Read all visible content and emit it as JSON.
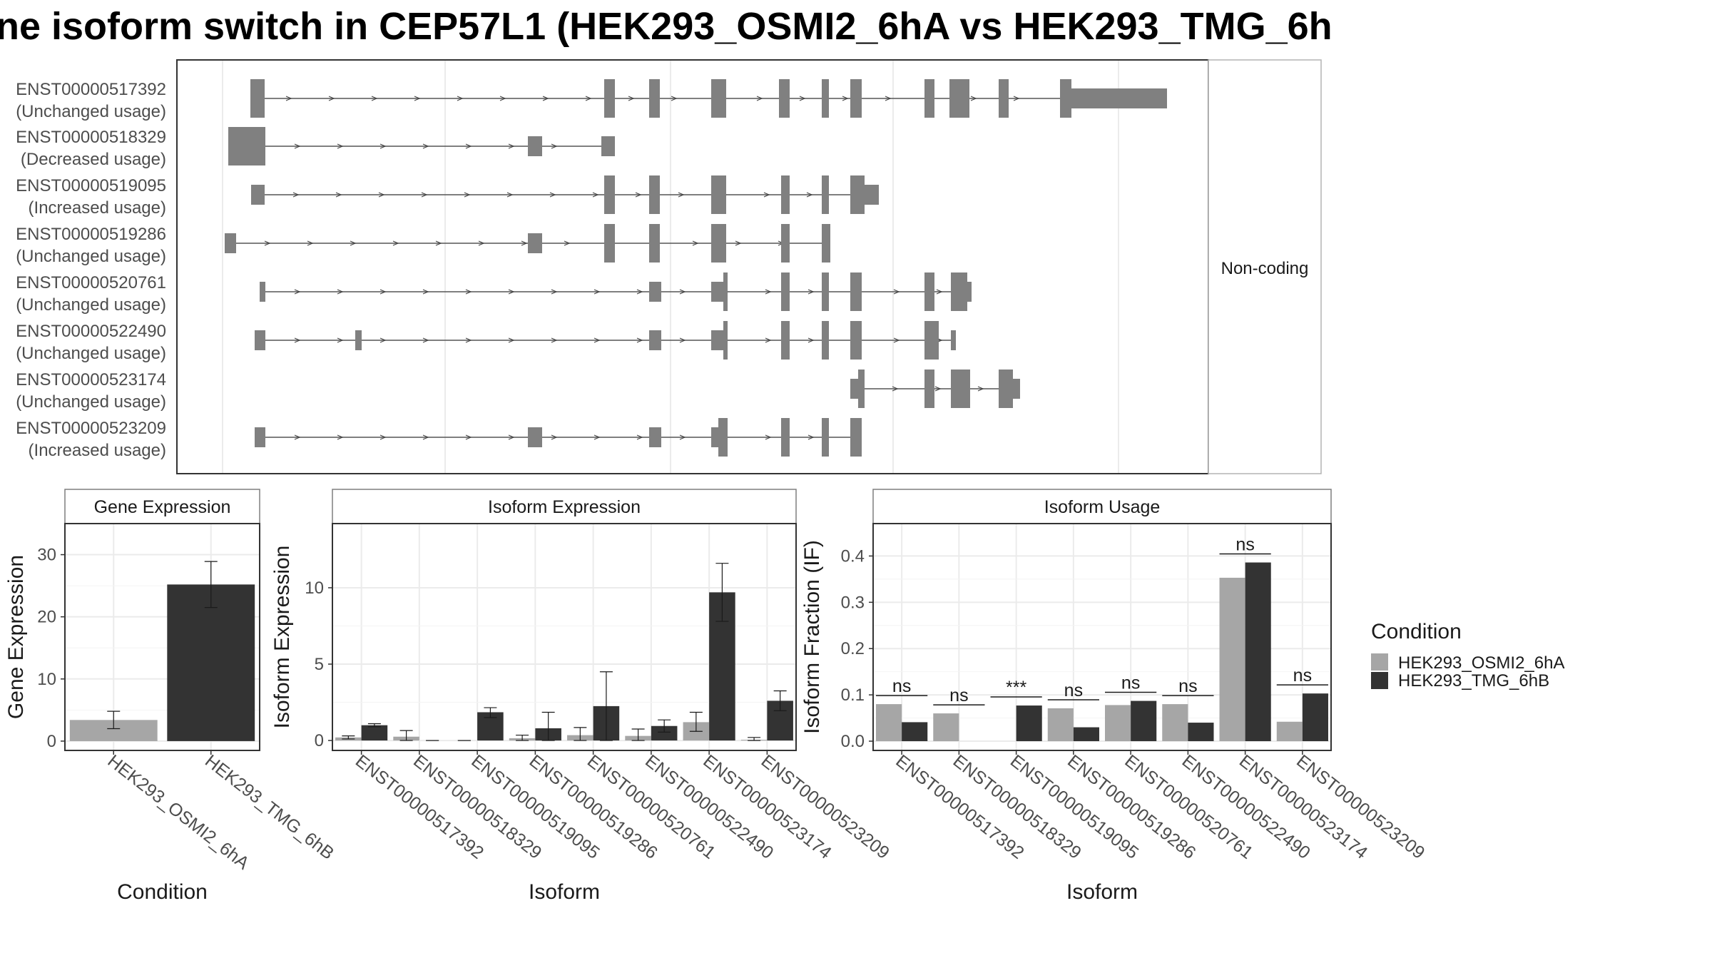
{
  "title": "ne isoform switch in CEP57L1 (HEK293_OSMI2_6hA vs HEK293_TMG_6h",
  "colors": {
    "cond_a": "#a6a6a6",
    "cond_b": "#333333",
    "exon": "#808080",
    "grid": "#ebebeb",
    "border": "#7f7f7f"
  },
  "structure": {
    "strip_label": "Non-coding",
    "isoforms": [
      {
        "id": "ENST00000517392",
        "status": "(Unchanged usage)"
      },
      {
        "id": "ENST00000518329",
        "status": "(Decreased usage)"
      },
      {
        "id": "ENST00000519095",
        "status": "(Increased usage)"
      },
      {
        "id": "ENST00000519286",
        "status": "(Unchanged usage)"
      },
      {
        "id": "ENST00000520761",
        "status": "(Unchanged usage)"
      },
      {
        "id": "ENST00000522490",
        "status": "(Unchanged usage)"
      },
      {
        "id": "ENST00000523174",
        "status": "(Unchanged usage)"
      },
      {
        "id": "ENST00000523209",
        "status": "(Increased usage)"
      }
    ]
  },
  "legend": {
    "title": "Condition",
    "items": [
      "HEK293_OSMI2_6hA",
      "HEK293_TMG_6hB"
    ]
  },
  "chart_data": [
    {
      "type": "bar",
      "title": "Gene Expression",
      "xlabel": "Condition",
      "ylabel": "Gene Expression",
      "categories": [
        "HEK293_OSMI2_6hA",
        "HEK293_TMG_6hB"
      ],
      "values": [
        3.4,
        25.2
      ],
      "errors_low": [
        2.0,
        21.5
      ],
      "errors_high": [
        4.8,
        28.9
      ],
      "yticks": [
        0,
        10,
        20,
        30
      ],
      "ylim": [
        -1.5,
        35
      ]
    },
    {
      "type": "bar",
      "title": "Isoform Expression",
      "xlabel": "Isoform",
      "ylabel": "Isoform Expression",
      "categories": [
        "ENST00000517392",
        "ENST00000518329",
        "ENST00000519095",
        "ENST00000519286",
        "ENST00000520761",
        "ENST00000522490",
        "ENST00000523174",
        "ENST00000523209"
      ],
      "series": [
        {
          "name": "HEK293_OSMI2_6hA",
          "values": [
            0.2,
            0.25,
            0.0,
            0.15,
            0.35,
            0.3,
            1.2,
            0.05
          ],
          "err_low": [
            0.1,
            0.0,
            0.0,
            0.0,
            0.0,
            0.0,
            0.6,
            0.0
          ],
          "err_high": [
            0.3,
            0.65,
            0.0,
            0.35,
            0.85,
            0.75,
            1.85,
            0.2
          ]
        },
        {
          "name": "HEK293_TMG_6hB",
          "values": [
            1.0,
            0.0,
            1.85,
            0.8,
            2.25,
            0.95,
            9.7,
            2.6
          ],
          "err_low": [
            0.9,
            0.0,
            1.5,
            0.0,
            0.0,
            0.55,
            7.8,
            1.95
          ],
          "err_high": [
            1.1,
            0.0,
            2.15,
            1.85,
            4.5,
            1.35,
            11.6,
            3.25
          ]
        }
      ],
      "yticks": [
        0,
        5,
        10
      ],
      "ylim": [
        -0.65,
        14.2
      ]
    },
    {
      "type": "bar",
      "title": "Isoform Usage",
      "xlabel": "Isoform",
      "ylabel": "Isoform Fraction (IF)",
      "categories": [
        "ENST00000517392",
        "ENST00000518329",
        "ENST00000519095",
        "ENST00000519286",
        "ENST00000520761",
        "ENST00000522490",
        "ENST00000523174",
        "ENST00000523209"
      ],
      "series": [
        {
          "name": "HEK293_OSMI2_6hA",
          "values": [
            0.08,
            0.06,
            0.0,
            0.071,
            0.078,
            0.08,
            0.353,
            0.042
          ]
        },
        {
          "name": "HEK293_TMG_6hB",
          "values": [
            0.041,
            0.0,
            0.077,
            0.03,
            0.087,
            0.04,
            0.386,
            0.103
          ]
        }
      ],
      "significance": [
        "ns",
        "ns",
        "***",
        "ns",
        "ns",
        "ns",
        "ns",
        "ns"
      ],
      "yticks": [
        0.0,
        0.1,
        0.2,
        0.3,
        0.4
      ],
      "yticklabels": [
        "0.0",
        "0.1",
        "0.2",
        "0.3",
        "0.4"
      ],
      "ylim": [
        -0.02,
        0.47
      ]
    }
  ]
}
